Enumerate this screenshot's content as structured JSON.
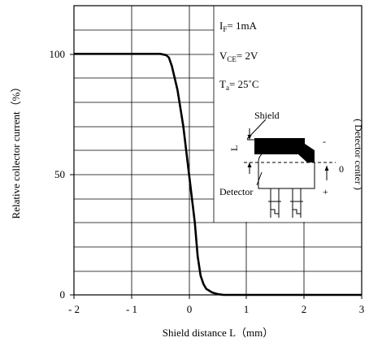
{
  "chart_data": {
    "type": "line",
    "title": "",
    "xlabel": "Shield distance L（mm）",
    "ylabel": "Relative collector current（%）",
    "xlim": [
      -2,
      3
    ],
    "ylim": [
      0,
      120
    ],
    "x_ticks": [
      "- 2",
      "- 1",
      "0",
      "1",
      "2",
      "3"
    ],
    "y_ticks": [
      "0",
      "50",
      "100"
    ],
    "grid": true,
    "series": [
      {
        "x": [
          -2.0,
          -0.8,
          -0.5,
          -0.4,
          -0.35,
          -0.3,
          -0.2,
          -0.1,
          0.0,
          0.1,
          0.15,
          0.2,
          0.25,
          0.3,
          0.4,
          0.5,
          0.6,
          3.0
        ],
        "y": [
          100,
          100,
          100,
          99.5,
          98.5,
          95,
          85,
          70,
          50,
          30,
          16,
          8,
          4.5,
          2.5,
          1,
          0.3,
          0,
          0
        ]
      }
    ],
    "annotations": {
      "cond_if_main": "I",
      "cond_if_sub": "F",
      "cond_if_rest": "= 1mA",
      "cond_vce_main": "V",
      "cond_vce_sub": "CE",
      "cond_vce_rest": "= 2V",
      "cond_ta_main": "T",
      "cond_ta_sub": "a",
      "cond_ta_rest": "= 25˚C"
    },
    "inset": {
      "shield_label": "Shield",
      "l_label": "L",
      "minus_label": "-",
      "zero_label": "0",
      "plus_label": "+",
      "detector_label": "Detector",
      "detector_center_label": "( Detector center )"
    }
  }
}
